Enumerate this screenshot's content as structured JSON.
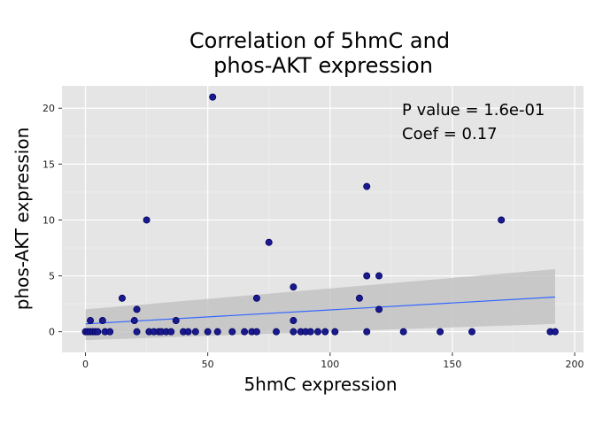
{
  "chart_data": {
    "type": "scatter",
    "title_lines": [
      "Correlation of 5hmC and",
      "phos-AKT expression"
    ],
    "xlabel": "5hmC expression",
    "ylabel": "phos-AKT expression",
    "xlim": [
      -9.6,
      203.6
    ],
    "ylim": [
      -1.85,
      22.0
    ],
    "xticks": [
      0,
      50,
      100,
      150,
      200
    ],
    "yticks": [
      0,
      5,
      10,
      15,
      20
    ],
    "grid": true,
    "annotations": [
      "P value = 1.6e-01",
      "Coef = 0.17"
    ],
    "colors": {
      "panel": "#e5e5e5",
      "grid_major": "#ffffff",
      "point": "#1a1a8c",
      "point_edge": "#000066",
      "fit_line": "#3366ff",
      "ci_band": "#bdbdbd"
    },
    "fit": {
      "x": [
        0,
        192
      ],
      "y": [
        0.7,
        3.1
      ],
      "ci_lower": [
        -0.75,
        0.7
      ],
      "ci_upper": [
        2.0,
        5.6
      ]
    },
    "points": {
      "x": [
        0,
        1,
        2,
        3,
        4,
        5,
        2,
        7,
        8,
        10,
        15,
        20,
        21,
        21,
        25,
        26,
        28,
        30,
        31,
        33,
        35,
        37,
        40,
        42,
        45,
        50,
        52,
        54,
        60,
        65,
        68,
        70,
        70,
        75,
        78,
        85,
        85,
        85,
        88,
        90,
        92,
        95,
        98,
        102,
        112,
        115,
        115,
        115,
        120,
        120,
        130,
        145,
        158,
        170,
        190,
        192
      ],
      "y": [
        0,
        0,
        0,
        0,
        0,
        0,
        1,
        1,
        0,
        0,
        3,
        1,
        2,
        0,
        10,
        0,
        0,
        0,
        0,
        0,
        0,
        1,
        0,
        0,
        0,
        0,
        21,
        0,
        0,
        0,
        0,
        3,
        0,
        8,
        0,
        4,
        1,
        0,
        0,
        0,
        0,
        0,
        0,
        0,
        3,
        13,
        5,
        0,
        5,
        2,
        0,
        0,
        0,
        10,
        0,
        0
      ]
    }
  }
}
